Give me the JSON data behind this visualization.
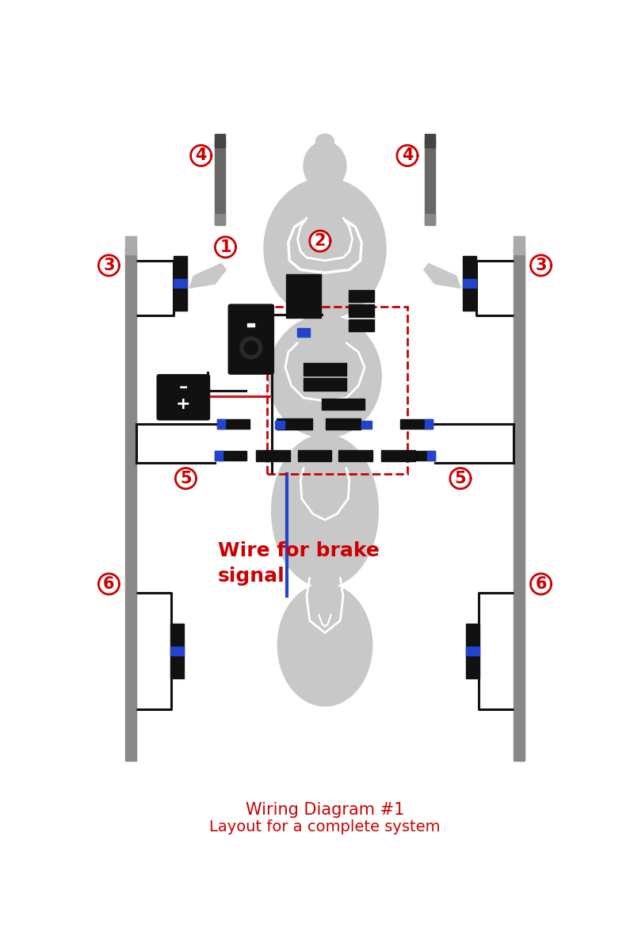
{
  "bg_color": "#ffffff",
  "title_line1": "Wiring Diagram #1",
  "title_line2": "Layout for a complete system",
  "title_color": "#cc0000",
  "title_fontsize": 15,
  "bike_color": "#c8c8c8",
  "wire_black": "#111111",
  "wire_red": "#dd1111",
  "wire_blue": "#2244cc",
  "connector_blue": "#2244cc",
  "label_color": "#cc0000",
  "brake_text_color": "#cc0000",
  "brake_text_fontsize": 18,
  "gray_cable": "#909090",
  "dark_gray": "#555555"
}
